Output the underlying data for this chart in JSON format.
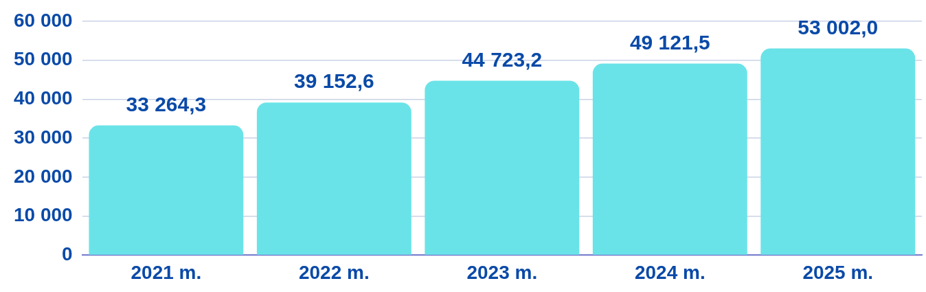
{
  "chart_data": {
    "type": "bar",
    "categories": [
      "2021 m.",
      "2022 m.",
      "2023 m.",
      "2024 m.",
      "2025 m."
    ],
    "values": [
      33264.3,
      39152.6,
      44723.2,
      49121.5,
      53002.0
    ],
    "value_labels": [
      "33 264,3",
      "39 152,6",
      "44 723,2",
      "49 121,5",
      "53 002,0"
    ],
    "color": "#6ae3e8",
    "ylim": [
      0,
      60000
    ],
    "yticks": [
      0,
      {
        "value": 10000,
        "label": "10 000"
      },
      {
        "value": 20000,
        "label": "20 000"
      },
      {
        "value": 30000,
        "label": "30 000"
      },
      {
        "value": 40000,
        "label": "40 000"
      },
      {
        "value": 50000,
        "label": "50 000"
      },
      {
        "value": 60000,
        "label": "60 000"
      }
    ],
    "grid": "y",
    "legend": false
  }
}
